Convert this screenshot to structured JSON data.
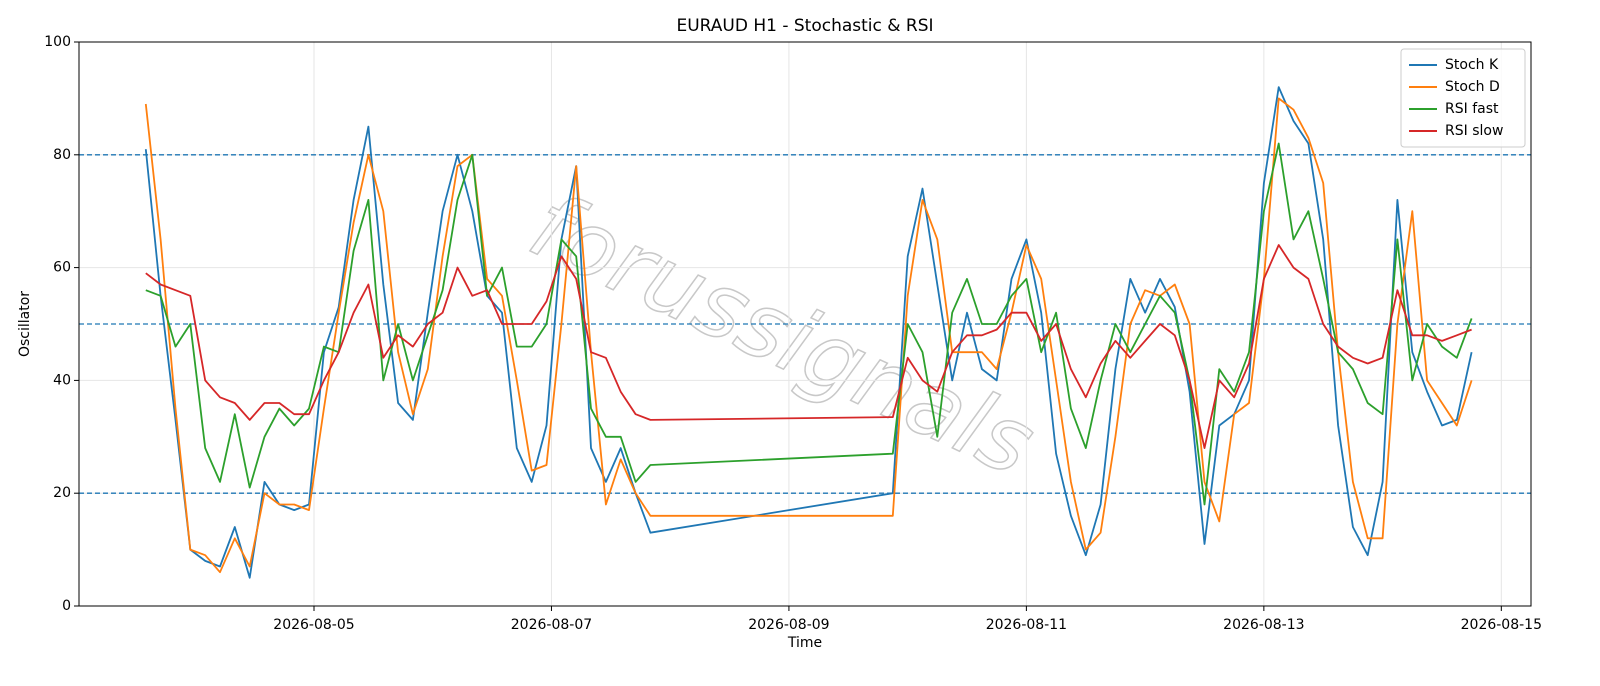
{
  "chart_data": {
    "type": "line",
    "title": "EURAUD H1 - Stochastic & RSI",
    "xlabel": "Time",
    "ylabel": "Oscillator",
    "watermark": "forussignals",
    "x": [
      "2026-08-03 14:00",
      "2026-08-03 17:00",
      "2026-08-03 20:00",
      "2026-08-03 23:00",
      "2026-08-04 02:00",
      "2026-08-04 05:00",
      "2026-08-04 08:00",
      "2026-08-04 11:00",
      "2026-08-04 14:00",
      "2026-08-04 17:00",
      "2026-08-04 20:00",
      "2026-08-04 23:00",
      "2026-08-05 02:00",
      "2026-08-05 05:00",
      "2026-08-05 08:00",
      "2026-08-05 11:00",
      "2026-08-05 14:00",
      "2026-08-05 17:00",
      "2026-08-05 20:00",
      "2026-08-05 23:00",
      "2026-08-06 02:00",
      "2026-08-06 05:00",
      "2026-08-06 08:00",
      "2026-08-06 11:00",
      "2026-08-06 14:00",
      "2026-08-06 17:00",
      "2026-08-06 20:00",
      "2026-08-06 23:00",
      "2026-08-07 02:00",
      "2026-08-07 05:00",
      "2026-08-07 08:00",
      "2026-08-07 11:00",
      "2026-08-07 14:00",
      "2026-08-07 17:00",
      "2026-08-07 20:00",
      "2026-08-09 21:00",
      "2026-08-10 00:00",
      "2026-08-10 03:00",
      "2026-08-10 06:00",
      "2026-08-10 09:00",
      "2026-08-10 12:00",
      "2026-08-10 15:00",
      "2026-08-10 18:00",
      "2026-08-10 21:00",
      "2026-08-11 00:00",
      "2026-08-11 03:00",
      "2026-08-11 06:00",
      "2026-08-11 09:00",
      "2026-08-11 12:00",
      "2026-08-11 15:00",
      "2026-08-11 18:00",
      "2026-08-11 21:00",
      "2026-08-12 00:00",
      "2026-08-12 03:00",
      "2026-08-12 06:00",
      "2026-08-12 09:00",
      "2026-08-12 12:00",
      "2026-08-12 15:00",
      "2026-08-12 18:00",
      "2026-08-12 21:00",
      "2026-08-13 00:00",
      "2026-08-13 03:00",
      "2026-08-13 06:00",
      "2026-08-13 09:00",
      "2026-08-13 12:00",
      "2026-08-13 15:00",
      "2026-08-13 18:00",
      "2026-08-13 21:00",
      "2026-08-14 00:00",
      "2026-08-14 03:00",
      "2026-08-14 06:00",
      "2026-08-14 09:00",
      "2026-08-14 12:00",
      "2026-08-14 15:00",
      "2026-08-14 18:00"
    ],
    "series": [
      {
        "name": "Stoch K",
        "color": "#1f77b4",
        "values": [
          81,
          55,
          33,
          10,
          8,
          7,
          14,
          5,
          22,
          18,
          17,
          18,
          45,
          53,
          72,
          85,
          57,
          36,
          33,
          52,
          70,
          80,
          70,
          55,
          52,
          28,
          22,
          32,
          65,
          78,
          28,
          22,
          28,
          20,
          13,
          20,
          62,
          74,
          57,
          40,
          52,
          42,
          40,
          58,
          65,
          52,
          27,
          16,
          9,
          18,
          42,
          58,
          52,
          58,
          53,
          38,
          11,
          32,
          34,
          40,
          75,
          92,
          86,
          82,
          65,
          32,
          14,
          9,
          22,
          72,
          45,
          38,
          32,
          33,
          45
        ]
      },
      {
        "name": "Stoch D",
        "color": "#ff7f0e",
        "values": [
          89,
          65,
          35,
          10,
          9,
          6,
          12,
          7,
          20,
          18,
          18,
          17,
          35,
          52,
          68,
          80,
          70,
          45,
          34,
          42,
          62,
          78,
          80,
          58,
          55,
          40,
          24,
          25,
          50,
          78,
          45,
          18,
          26,
          20,
          16,
          16,
          55,
          72,
          65,
          45,
          45,
          45,
          42,
          52,
          64,
          58,
          40,
          22,
          10,
          13,
          30,
          50,
          56,
          55,
          57,
          50,
          22,
          15,
          34,
          36,
          58,
          90,
          88,
          83,
          75,
          45,
          22,
          12,
          12,
          50,
          70,
          40,
          36,
          32,
          40
        ]
      },
      {
        "name": "RSI fast",
        "color": "#2ca02c",
        "values": [
          56,
          55,
          46,
          50,
          28,
          22,
          34,
          21,
          30,
          35,
          32,
          35,
          46,
          45,
          63,
          72,
          40,
          50,
          40,
          48,
          56,
          72,
          80,
          55,
          60,
          46,
          46,
          50,
          65,
          62,
          35,
          30,
          30,
          22,
          25,
          27,
          50,
          45,
          30,
          52,
          58,
          50,
          50,
          55,
          58,
          45,
          52,
          35,
          28,
          40,
          50,
          45,
          50,
          55,
          52,
          40,
          18,
          42,
          38,
          45,
          70,
          82,
          65,
          70,
          58,
          45,
          42,
          36,
          34,
          65,
          40,
          50,
          46,
          44,
          51
        ]
      },
      {
        "name": "RSI slow",
        "color": "#d62728",
        "values": [
          59,
          57,
          56,
          55,
          40,
          37,
          36,
          33,
          36,
          36,
          34,
          34,
          40,
          45,
          52,
          57,
          44,
          48,
          46,
          50,
          52,
          60,
          55,
          56,
          50,
          50,
          50,
          54,
          62,
          58,
          45,
          44,
          38,
          34,
          33,
          33.5,
          44,
          40,
          38,
          45,
          48,
          48,
          49,
          52,
          52,
          47,
          50,
          42,
          37,
          43,
          47,
          44,
          47,
          50,
          48,
          40,
          28,
          40,
          37,
          43,
          58,
          64,
          60,
          58,
          50,
          46,
          44,
          43,
          44,
          56,
          48,
          48,
          47,
          48,
          49
        ]
      }
    ],
    "xlim": [
      "2026-08-03 00:30",
      "2026-08-15 06:00"
    ],
    "xticks": [
      "2026-08-05",
      "2026-08-07",
      "2026-08-09",
      "2026-08-11",
      "2026-08-13",
      "2026-08-15"
    ],
    "ylim": [
      0,
      100
    ],
    "yticks": [
      0,
      20,
      40,
      60,
      80,
      100
    ],
    "hlines": [
      20,
      50,
      80
    ],
    "hline_color": "#1f77b4",
    "grid": true,
    "legend": "upper right"
  }
}
